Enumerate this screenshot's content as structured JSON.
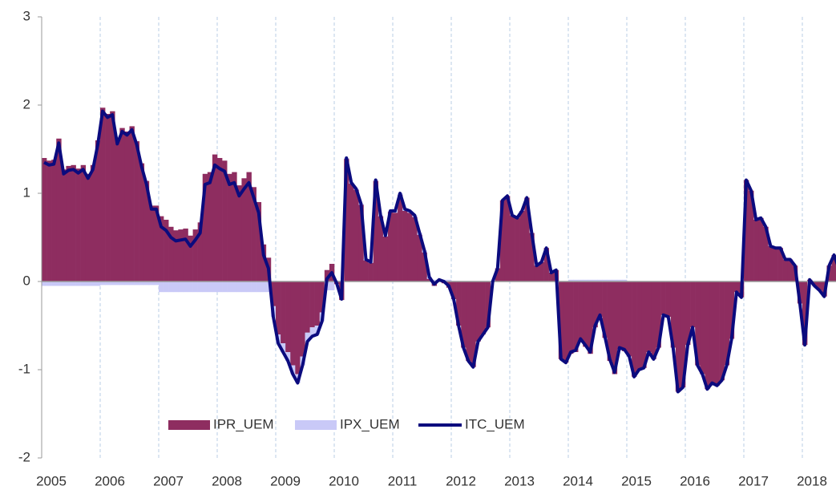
{
  "chart_data": {
    "type": "bar-line",
    "categories": [
      "2005",
      null,
      null,
      null,
      null,
      null,
      null,
      null,
      null,
      null,
      null,
      null,
      "2006",
      null,
      null,
      null,
      null,
      null,
      null,
      null,
      null,
      null,
      null,
      null,
      "2007",
      null,
      null,
      null,
      null,
      null,
      null,
      null,
      null,
      null,
      null,
      null,
      "2008",
      null,
      null,
      null,
      null,
      null,
      null,
      null,
      null,
      null,
      null,
      null,
      "2009",
      null,
      null,
      null,
      null,
      null,
      null,
      null,
      null,
      null,
      null,
      null,
      "2010",
      null,
      null,
      null,
      null,
      null,
      null,
      null,
      null,
      null,
      null,
      null,
      "2011",
      null,
      null,
      null,
      null,
      null,
      null,
      null,
      null,
      null,
      null,
      null,
      "2012",
      null,
      null,
      null,
      null,
      null,
      null,
      null,
      null,
      null,
      null,
      null,
      "2013",
      null,
      null,
      null,
      null,
      null,
      null,
      null,
      null,
      null,
      null,
      null,
      "2014",
      null,
      null,
      null,
      null,
      null,
      null,
      null,
      null,
      null,
      null,
      null,
      "2015",
      null,
      null,
      null,
      null,
      null,
      null,
      null,
      null,
      null,
      null,
      null,
      "2016",
      null,
      null,
      null,
      null,
      null,
      null,
      null,
      null,
      null,
      null,
      null,
      "2017",
      null,
      null,
      null,
      null,
      null,
      null,
      null,
      null,
      null,
      null,
      null,
      "2018",
      null,
      null,
      null,
      null,
      null,
      null,
      null
    ],
    "series": [
      {
        "name": "IPR_UEM",
        "kind": "bar",
        "color": "#8e2d60",
        "values": [
          1.4,
          1.37,
          1.38,
          1.62,
          1.27,
          1.31,
          1.32,
          1.28,
          1.32,
          1.22,
          1.32,
          1.6,
          1.97,
          1.9,
          1.93,
          1.6,
          1.74,
          1.7,
          1.76,
          1.59,
          1.34,
          1.14,
          0.86,
          0.86,
          0.74,
          0.7,
          0.62,
          0.58,
          0.59,
          0.6,
          0.52,
          0.59,
          0.67,
          1.22,
          1.24,
          1.44,
          1.4,
          1.37,
          1.22,
          1.24,
          1.09,
          1.17,
          1.24,
          1.07,
          0.9,
          0.42,
          0.27,
          -0.28,
          -0.6,
          -0.7,
          -0.8,
          -0.95,
          -1.05,
          -0.85,
          -0.58,
          -0.52,
          -0.5,
          -0.35,
          0.13,
          0.2,
          -0.03,
          -0.21,
          1.39,
          1.11,
          1.04,
          0.87,
          0.24,
          0.21,
          1.14,
          0.74,
          0.51,
          0.79,
          0.78,
          0.98,
          0.8,
          0.78,
          0.73,
          0.53,
          0.33,
          0.03,
          -0.05,
          0.0,
          -0.02,
          -0.07,
          -0.2,
          -0.5,
          -0.75,
          -0.9,
          -0.97,
          -0.68,
          -0.6,
          -0.52,
          0.0,
          0.15,
          0.92,
          0.97,
          0.75,
          0.72,
          0.8,
          0.95,
          0.55,
          0.18,
          0.22,
          0.38,
          0.1,
          0.13,
          -0.88,
          -0.92,
          -0.82,
          -0.8,
          -0.67,
          -0.74,
          -0.82,
          -0.52,
          -0.4,
          -0.64,
          -0.9,
          -1.05,
          -0.77,
          -0.79,
          -0.85,
          -1.08,
          -1.0,
          -0.98,
          -0.8,
          -0.88,
          -0.75,
          -0.38,
          -0.4,
          -0.75,
          -1.25,
          -1.2,
          -0.72,
          -0.52,
          -0.95,
          -1.05,
          -1.22,
          -1.15,
          -1.18,
          -1.12,
          -0.95,
          -0.65,
          -0.12,
          -0.18,
          1.15,
          1.03,
          0.7,
          0.72,
          0.62,
          0.4,
          0.38,
          0.38,
          0.25,
          0.25,
          0.18,
          -0.25,
          -0.72,
          0.02,
          -0.05,
          -0.1,
          -0.17,
          0.18,
          0.3,
          0.15
        ]
      },
      {
        "name": "IPX_UEM",
        "kind": "bar",
        "color": "#c9c9f7",
        "values": [
          -0.05,
          -0.05,
          -0.05,
          -0.05,
          -0.05,
          -0.05,
          -0.05,
          -0.05,
          -0.05,
          -0.05,
          -0.05,
          -0.05,
          -0.04,
          -0.04,
          -0.04,
          -0.04,
          -0.04,
          -0.04,
          -0.04,
          -0.04,
          -0.04,
          -0.04,
          -0.04,
          -0.04,
          -0.12,
          -0.12,
          -0.12,
          -0.12,
          -0.12,
          -0.12,
          -0.12,
          -0.12,
          -0.12,
          -0.12,
          -0.12,
          -0.12,
          -0.12,
          -0.12,
          -0.12,
          -0.12,
          -0.12,
          -0.12,
          -0.12,
          -0.12,
          -0.12,
          -0.12,
          -0.12,
          -0.12,
          -0.1,
          -0.1,
          -0.1,
          -0.1,
          -0.1,
          -0.1,
          -0.1,
          -0.1,
          -0.1,
          -0.1,
          -0.1,
          -0.1,
          0.01,
          0.01,
          0.01,
          0.01,
          0.01,
          0.01,
          0.01,
          0.01,
          0.01,
          0.01,
          0.01,
          0.01,
          0.02,
          0.02,
          0.02,
          0.02,
          0.02,
          0.02,
          0.02,
          0.02,
          0.02,
          0.02,
          0.02,
          0.02,
          0,
          0,
          0,
          0,
          0,
          0,
          0,
          0,
          0,
          0,
          0,
          0,
          0,
          0,
          0,
          0,
          0,
          0,
          0,
          0,
          0,
          0,
          0,
          0,
          0.02,
          0.02,
          0.02,
          0.02,
          0.02,
          0.02,
          0.02,
          0.02,
          0.02,
          0.02,
          0.02,
          0.02,
          0,
          0,
          0,
          0,
          0,
          0,
          0,
          0,
          0,
          0,
          0,
          0,
          0,
          0,
          0,
          0,
          0,
          0,
          0,
          0,
          0,
          0,
          0,
          0,
          0,
          0,
          0,
          0,
          0,
          0,
          0,
          0,
          0,
          0,
          0,
          0,
          0,
          0,
          0,
          0,
          0,
          0,
          0,
          0
        ]
      },
      {
        "name": "ITC_UEM",
        "kind": "line",
        "color": "#0b0b7e",
        "values": [
          1.35,
          1.32,
          1.33,
          1.57,
          1.22,
          1.26,
          1.27,
          1.23,
          1.27,
          1.17,
          1.27,
          1.55,
          1.93,
          1.86,
          1.89,
          1.56,
          1.7,
          1.66,
          1.72,
          1.55,
          1.3,
          1.1,
          0.82,
          0.82,
          0.62,
          0.58,
          0.5,
          0.46,
          0.47,
          0.48,
          0.4,
          0.47,
          0.55,
          1.1,
          1.12,
          1.32,
          1.28,
          1.25,
          1.1,
          1.12,
          0.97,
          1.05,
          1.12,
          0.95,
          0.78,
          0.3,
          0.15,
          -0.4,
          -0.7,
          -0.8,
          -0.9,
          -1.05,
          -1.15,
          -0.95,
          -0.68,
          -0.62,
          -0.6,
          -0.45,
          0.03,
          0.1,
          -0.02,
          -0.2,
          1.4,
          1.12,
          1.05,
          0.88,
          0.25,
          0.22,
          1.15,
          0.75,
          0.52,
          0.8,
          0.8,
          1.0,
          0.82,
          0.8,
          0.75,
          0.55,
          0.35,
          0.05,
          -0.03,
          0.02,
          0.0,
          -0.05,
          -0.2,
          -0.5,
          -0.75,
          -0.9,
          -0.97,
          -0.68,
          -0.6,
          -0.52,
          0.0,
          0.15,
          0.92,
          0.97,
          0.75,
          0.72,
          0.8,
          0.95,
          0.55,
          0.18,
          0.22,
          0.38,
          0.1,
          0.13,
          -0.88,
          -0.92,
          -0.8,
          -0.78,
          -0.65,
          -0.72,
          -0.8,
          -0.5,
          -0.38,
          -0.62,
          -0.88,
          -1.03,
          -0.75,
          -0.77,
          -0.85,
          -1.08,
          -1.0,
          -0.98,
          -0.8,
          -0.88,
          -0.75,
          -0.38,
          -0.4,
          -0.75,
          -1.25,
          -1.2,
          -0.72,
          -0.52,
          -0.95,
          -1.05,
          -1.22,
          -1.15,
          -1.18,
          -1.12,
          -0.95,
          -0.65,
          -0.12,
          -0.18,
          1.15,
          1.03,
          0.7,
          0.72,
          0.62,
          0.4,
          0.38,
          0.38,
          0.25,
          0.25,
          0.18,
          -0.25,
          -0.72,
          0.02,
          -0.05,
          -0.1,
          -0.17,
          0.18,
          0.3,
          0.15
        ]
      }
    ],
    "ylim": [
      -2,
      3
    ],
    "yticks": [
      -2,
      -1,
      0,
      1,
      2,
      3
    ],
    "grid": "x",
    "legend": "bottom"
  }
}
